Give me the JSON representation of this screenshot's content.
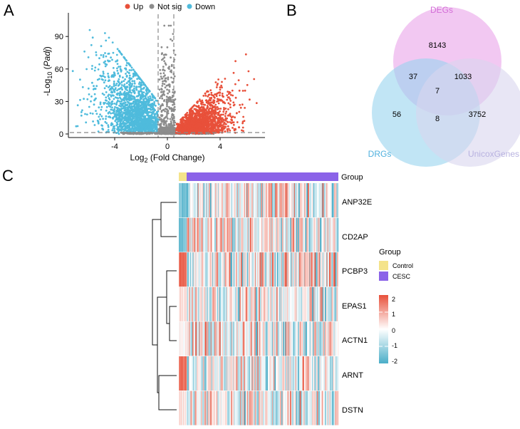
{
  "panels": {
    "a": "A",
    "b": "B",
    "c": "C"
  },
  "colors": {
    "up": "#e8503a",
    "notsig": "#8c8c8c",
    "down": "#4fbbdc",
    "degs": "#e9a4ea",
    "drgs": "#97d4ef",
    "unicox": "#d9d5ef",
    "control": "#f4e38a",
    "cesc": "#8b63e8",
    "heat_low": "#4aaec8",
    "heat_mid": "#ffffff",
    "heat_high": "#e8503a"
  },
  "chart_data": [
    {
      "type": "scatter",
      "name": "volcano",
      "legend": {
        "placement": "top",
        "entries": [
          "Up",
          "Not sig",
          "Down"
        ]
      },
      "xlabel_main": "Log",
      "xlabel_sub": "2",
      "xlabel_rest": " (Fold Change)",
      "ylabel_main": "-Log",
      "ylabel_sub": "10",
      "ylabel_paren_open": " (",
      "ylabel_italic": "Padj",
      "ylabel_paren_close": ")",
      "xlim": [
        -7,
        7.5
      ],
      "ylim": [
        0,
        110
      ],
      "x_ticks": [
        -4,
        0,
        4
      ],
      "x_tick_labels": [
        "-4",
        "0",
        "4"
      ],
      "y_ticks": [
        0,
        30,
        60,
        90
      ],
      "y_tick_labels": [
        "0",
        "30",
        "60",
        "90"
      ],
      "thresholds": {
        "fc": [
          -0.58,
          0.58
        ],
        "padj_neglog10": 1.3
      },
      "series": [
        {
          "name": "Up",
          "approx_region": {
            "x": [
              0.6,
              6.5
            ],
            "y_max": 75
          }
        },
        {
          "name": "Not sig",
          "approx_region": {
            "x": [
              -0.58,
              0.58
            ],
            "y_max": 100
          }
        },
        {
          "name": "Down",
          "approx_region": {
            "x": [
              -6.5,
              -0.6
            ],
            "y_max": 110
          }
        }
      ]
    },
    {
      "type": "venn",
      "sets": [
        "DEGs",
        "DRGs",
        "UnicoxGenes"
      ],
      "regions": {
        "degs_only": "8143",
        "degs_drgs": "37",
        "degs_unicox": "1033",
        "all": "7",
        "drgs_only": "56",
        "drgs_unicox": "8",
        "unicox_only": "3752"
      }
    },
    {
      "type": "heatmap",
      "rows": [
        "ANP32E",
        "CD2AP",
        "PCBP3",
        "EPAS1",
        "ACTN1",
        "ARNT",
        "DSTN"
      ],
      "annotation_label": "Group",
      "groups": [
        {
          "name": "Control",
          "fraction": 0.05
        },
        {
          "name": "CESC",
          "fraction": 0.95
        }
      ],
      "legend_group_title": "Group",
      "legend_group_entries": [
        "Control",
        "CESC"
      ],
      "color_scale": {
        "min": -2,
        "max": 2
      },
      "scale_ticks": [
        "2",
        "1",
        "0",
        "-1",
        "-2"
      ],
      "control_pattern": {
        "ANP32E": -1.5,
        "CD2AP": -1.5,
        "PCBP3": 1.6,
        "EPAS1": 0.4,
        "ACTN1": 0.2,
        "ARNT": 1.7,
        "DSTN": 0.3
      },
      "dendrogram": "ANP32E+CD2AP vs ((PCBP3, (EPAS1, ACTN1)), (ARNT, DSTN))"
    }
  ]
}
